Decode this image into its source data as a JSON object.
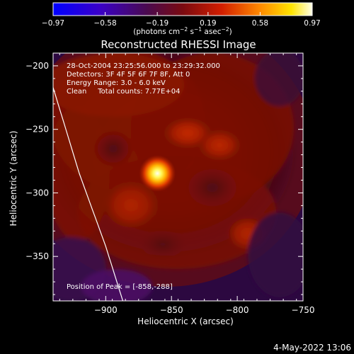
{
  "chart_data": {
    "type": "heatmap",
    "title": "Reconstructed RHESSI Image",
    "xlabel": "Heliocentric X (arcsec)",
    "ylabel": "Heliocentric Y (arcsec)",
    "xlim": [
      -940,
      -750
    ],
    "ylim": [
      -385,
      -190
    ],
    "x_ticks": [
      -900,
      -850,
      -800,
      -750
    ],
    "x_tick_labels": [
      "−900",
      "−850",
      "−800",
      "−750"
    ],
    "y_ticks": [
      -200,
      -250,
      -300,
      -350
    ],
    "y_tick_labels": [
      "−200",
      "−250",
      "−300",
      "−350"
    ],
    "colorbar": {
      "range": [
        -0.97,
        0.97
      ],
      "tick_values": [
        -0.97,
        -0.58,
        -0.19,
        0.19,
        0.58,
        0.97
      ],
      "tick_labels": [
        "−0.97",
        "−0.58",
        "−0.19",
        "0.19",
        "0.58",
        "0.97"
      ],
      "units_text": "(photons cm",
      "units_sup1": "−2",
      "units_mid": " s",
      "units_sup2": "−1",
      "units_mid2": " asec",
      "units_sup3": "−2",
      "units_end": ")",
      "colormap": "cubehelix-like: blue → dark purple → red → orange → yellow → white"
    },
    "info_lines": [
      "28-Oct-2004 23:25:56.000 to 23:29:32.000",
      "Detectors: 3F 4F 5F 6F 7F 8F, Att 0",
      "Energy Range: 3.0 - 6.0 keV",
      "Clean     Total counts: 7.77E+04"
    ],
    "peak_label": "Position of Peak = [-858,-288]",
    "peak": {
      "x": -858,
      "y": -288
    },
    "limb_curve": [
      {
        "x": -940,
        "y": -217
      },
      {
        "x": -920,
        "y": -285
      },
      {
        "x": -900,
        "y": -342
      },
      {
        "x": -887,
        "y": -385
      }
    ],
    "date_stamp": "4-May-2022 13:06"
  },
  "colors": {
    "background": "#000000",
    "text": "#ffffff",
    "limb_line": "#ffffff"
  }
}
